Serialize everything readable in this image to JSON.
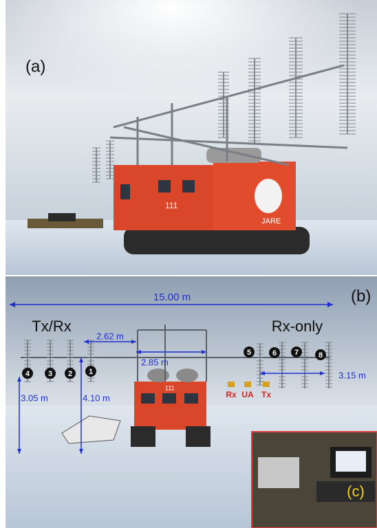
{
  "panel_a": {
    "label": "(a)",
    "vehicle_number": "111",
    "vehicle_text": "JARE"
  },
  "panel_b": {
    "label": "(b)",
    "span": "15.00 m",
    "group_left": "Tx/Rx",
    "group_right": "Rx-only",
    "spacing_inner": "2.62 m",
    "spacing_center": "2.85 m",
    "spacing_right": "3.15 m",
    "height_outer": "3.05 m",
    "height_inner": "4.10 m",
    "antennas": [
      "1",
      "2",
      "3",
      "4",
      "5",
      "6",
      "7",
      "8"
    ],
    "units": [
      "Rx",
      "UA",
      "Tx"
    ],
    "vehicle_number": "111"
  },
  "panel_c": {
    "label": "(c)"
  }
}
